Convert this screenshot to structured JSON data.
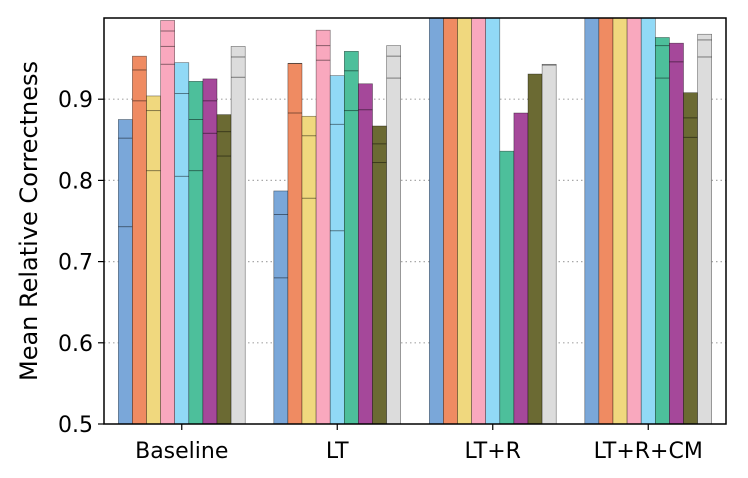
{
  "chart_data": {
    "type": "bar",
    "ylabel": "Mean Relative Correctness",
    "xlabel": "",
    "title": "",
    "ylim": [
      0.5,
      1.0
    ],
    "yticks": [
      "0.5",
      "0.6",
      "0.7",
      "0.8",
      "0.9"
    ],
    "ytick_values": [
      0.5,
      0.6,
      0.7,
      0.8,
      0.9
    ],
    "grid": "horizontal-dotted",
    "categories": [
      "Baseline",
      "LT",
      "LT+R",
      "LT+R+CM"
    ],
    "series_colors": [
      "#7aa7d9",
      "#ef8b62",
      "#f0d87e",
      "#f9a8be",
      "#91d9f6",
      "#4dbf9b",
      "#a5489a",
      "#6b6a33",
      "#dcdcdc"
    ],
    "series": [
      {
        "values": [
          0.875,
          0.787,
          1.0,
          1.0
        ],
        "segments": [
          [
            0.743,
            0.852
          ],
          [
            0.68,
            0.758
          ],
          [],
          []
        ]
      },
      {
        "values": [
          0.953,
          0.944,
          1.0,
          1.0
        ],
        "segments": [
          [
            0.898,
            0.936
          ],
          [
            0.883,
            0.944
          ],
          [],
          []
        ]
      },
      {
        "values": [
          0.904,
          0.879,
          1.0,
          1.0
        ],
        "segments": [
          [
            0.812,
            0.886
          ],
          [
            0.778,
            0.855
          ],
          [],
          []
        ]
      },
      {
        "values": [
          0.997,
          0.985,
          1.0,
          1.0
        ],
        "segments": [
          [
            0.943,
            0.965,
            0.984
          ],
          [
            0.948,
            0.966
          ],
          [],
          []
        ]
      },
      {
        "values": [
          0.945,
          0.929,
          1.0,
          1.0
        ],
        "segments": [
          [
            0.805,
            0.907
          ],
          [
            0.738,
            0.869
          ],
          [],
          []
        ]
      },
      {
        "values": [
          0.922,
          0.959,
          0.836,
          0.976
        ],
        "segments": [
          [
            0.812,
            0.875
          ],
          [
            0.886,
            0.935
          ],
          [],
          [
            0.926,
            0.966
          ]
        ]
      },
      {
        "values": [
          0.925,
          0.919,
          0.883,
          0.969
        ],
        "segments": [
          [
            0.858,
            0.898
          ],
          [
            0.887
          ],
          [],
          [
            0.946
          ]
        ]
      },
      {
        "values": [
          0.881,
          0.867,
          0.931,
          0.908
        ],
        "segments": [
          [
            0.83,
            0.86
          ],
          [
            0.822,
            0.845
          ],
          [],
          [
            0.853,
            0.877
          ]
        ]
      },
      {
        "values": [
          0.965,
          0.966,
          0.943,
          0.98
        ],
        "segments": [
          [
            0.927,
            0.952
          ],
          [
            0.926,
            0.953
          ],
          [
            0.942
          ],
          [
            0.952,
            0.973
          ]
        ]
      }
    ]
  }
}
